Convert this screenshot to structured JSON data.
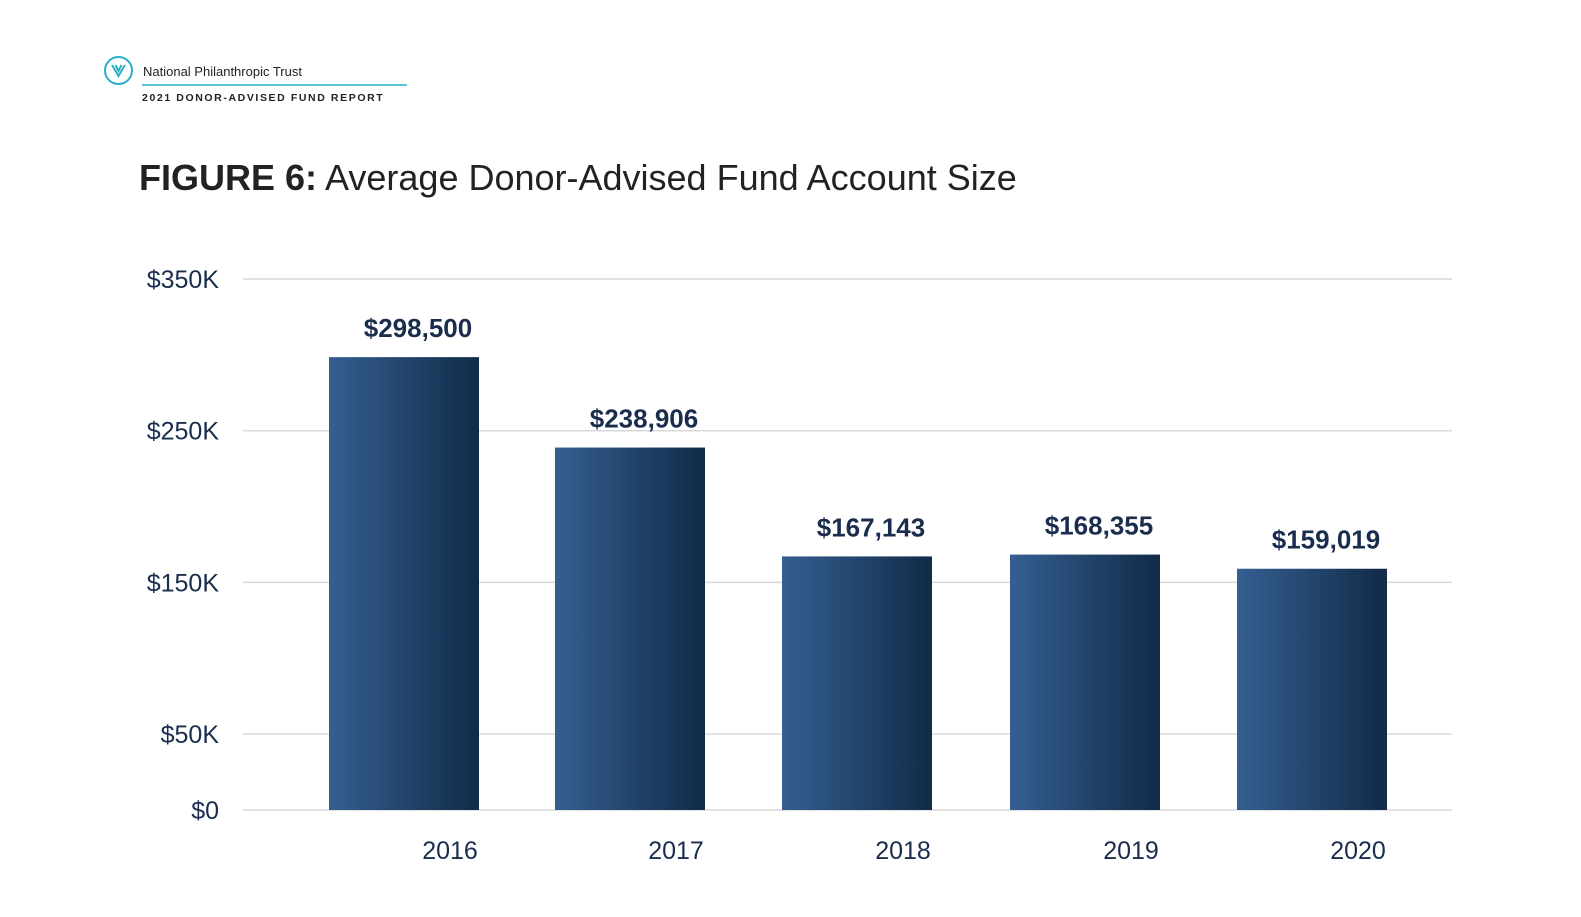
{
  "header": {
    "org_name": "National Philanthropic Trust",
    "report_name": "2021 DONOR-ADVISED FUND REPORT",
    "logo_icon": "leaf-chevron-icon"
  },
  "chart_data": {
    "type": "bar",
    "title_prefix": "FIGURE 6:",
    "title": "Average Donor-Advised Fund Account Size",
    "categories": [
      "2016",
      "2017",
      "2018",
      "2019",
      "2020"
    ],
    "values": [
      298500,
      238906,
      167143,
      168355,
      159019
    ],
    "data_labels": [
      "$298,500",
      "$238,906",
      "$167,143",
      "$168,355",
      "$159,019"
    ],
    "yticks": [
      0,
      50000,
      150000,
      250000,
      350000
    ],
    "ytick_labels": [
      "$0",
      "$50K",
      "$150K",
      "$250K",
      "$350K"
    ],
    "ylim": [
      0,
      350000
    ],
    "xlabel": "",
    "ylabel": "",
    "grid": true,
    "colors": {
      "bar_light": "#355f91",
      "bar_dark": "#112b48",
      "text": "#1a2d4d",
      "grid": "#d9d9d9",
      "accent": "#2ab0c5"
    }
  }
}
